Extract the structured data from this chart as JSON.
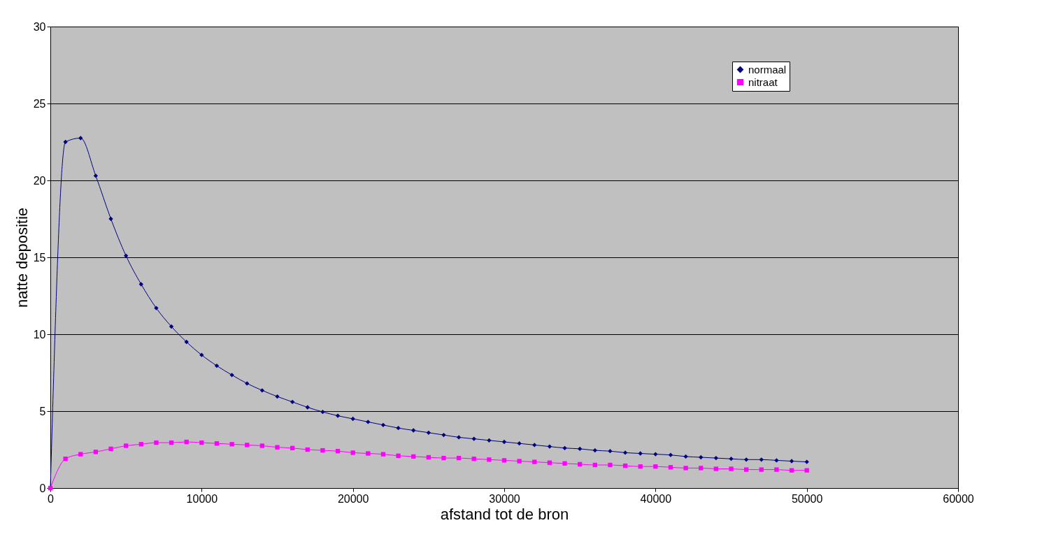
{
  "chart_data": {
    "type": "line",
    "xlabel": "afstand tot de bron",
    "ylabel": "natte depositie",
    "x": [
      0,
      1000,
      2000,
      3000,
      4000,
      5000,
      6000,
      7000,
      8000,
      9000,
      10000,
      11000,
      12000,
      13000,
      14000,
      15000,
      16000,
      17000,
      18000,
      19000,
      20000,
      21000,
      22000,
      23000,
      24000,
      25000,
      26000,
      27000,
      28000,
      29000,
      30000,
      31000,
      32000,
      33000,
      34000,
      35000,
      36000,
      37000,
      38000,
      39000,
      40000,
      41000,
      42000,
      43000,
      44000,
      45000,
      46000,
      47000,
      48000,
      49000,
      50000
    ],
    "series": [
      {
        "name": "normaal",
        "color": "#000080",
        "marker": "diamond",
        "values": [
          0,
          22.5,
          22.75,
          20.3,
          17.5,
          15.1,
          13.25,
          11.7,
          10.5,
          9.5,
          8.65,
          7.95,
          7.35,
          6.8,
          6.35,
          5.95,
          5.6,
          5.25,
          4.95,
          4.7,
          4.5,
          4.3,
          4.1,
          3.9,
          3.75,
          3.6,
          3.45,
          3.3,
          3.2,
          3.1,
          3.0,
          2.9,
          2.8,
          2.7,
          2.6,
          2.55,
          2.45,
          2.4,
          2.3,
          2.25,
          2.2,
          2.15,
          2.05,
          2.0,
          1.95,
          1.9,
          1.85,
          1.85,
          1.8,
          1.75,
          1.7
        ]
      },
      {
        "name": "nitraat",
        "color": "#ff00ff",
        "marker": "square",
        "values": [
          0,
          1.9,
          2.2,
          2.35,
          2.55,
          2.75,
          2.85,
          2.95,
          2.95,
          3.0,
          2.95,
          2.9,
          2.85,
          2.8,
          2.75,
          2.65,
          2.6,
          2.5,
          2.45,
          2.4,
          2.3,
          2.25,
          2.2,
          2.1,
          2.05,
          2.0,
          1.95,
          1.95,
          1.9,
          1.85,
          1.8,
          1.75,
          1.7,
          1.65,
          1.6,
          1.55,
          1.5,
          1.5,
          1.45,
          1.4,
          1.4,
          1.35,
          1.3,
          1.3,
          1.25,
          1.25,
          1.2,
          1.2,
          1.2,
          1.15,
          1.15
        ]
      }
    ],
    "xlim": [
      0,
      60000
    ],
    "xticks": [
      0,
      10000,
      20000,
      30000,
      40000,
      50000,
      60000
    ],
    "ylim": [
      0,
      30
    ],
    "yticks": [
      0,
      5,
      10,
      15,
      20,
      25,
      30
    ],
    "grid": "y",
    "legend": "top right",
    "line_style": "solid"
  }
}
